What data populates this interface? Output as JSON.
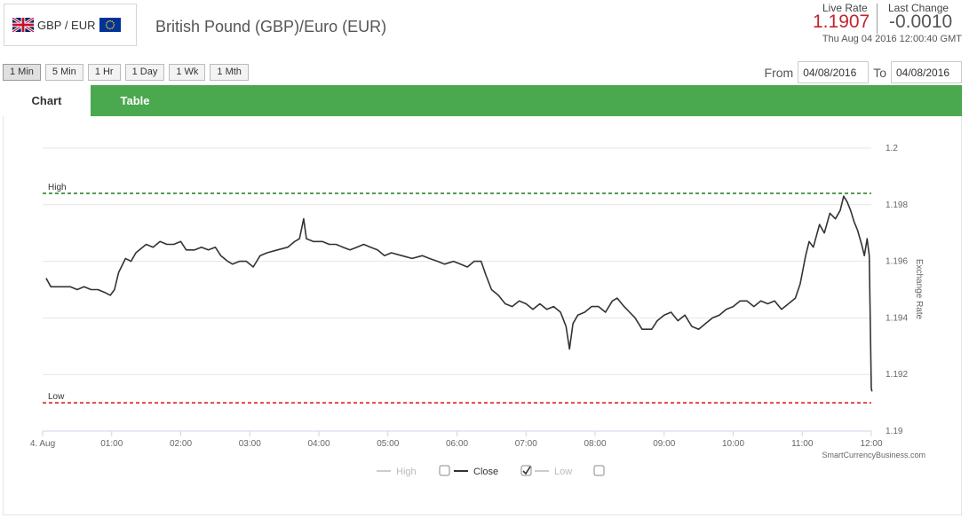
{
  "pair": {
    "label": "GBP / EUR",
    "title": "British Pound (GBP)/Euro (EUR)",
    "base_flag": "uk-flag-icon",
    "quote_flag": "eu-flag-icon"
  },
  "rate": {
    "live_label": "Live Rate",
    "live_value": "1.1907",
    "change_label": "Last Change",
    "change_value": "-0.0010",
    "timestamp": "Thu Aug 04 2016 12:00:40 GMT",
    "live_color": "#c0262c"
  },
  "periods": [
    {
      "label": "1 Min",
      "active": true
    },
    {
      "label": "5 Min",
      "active": false
    },
    {
      "label": "1 Hr",
      "active": false
    },
    {
      "label": "1 Day",
      "active": false
    },
    {
      "label": "1 Wk",
      "active": false
    },
    {
      "label": "1 Mth",
      "active": false
    }
  ],
  "date_range": {
    "from_label": "From",
    "from_value": "04/08/2016",
    "to_label": "To",
    "to_value": "04/08/2016"
  },
  "tabs": {
    "chart": "Chart",
    "table": "Table",
    "accent": "#4aa84f"
  },
  "chart_data": {
    "type": "line",
    "title": "",
    "xlabel": "",
    "ylabel": "Exchange Rate",
    "ylim": [
      1.19,
      1.2
    ],
    "xlim": [
      0,
      12
    ],
    "x_tick_labels": [
      "4. Aug",
      "01:00",
      "02:00",
      "03:00",
      "04:00",
      "05:00",
      "06:00",
      "07:00",
      "08:00",
      "09:00",
      "10:00",
      "11:00",
      "12:00"
    ],
    "y_ticks": [
      1.19,
      1.192,
      1.194,
      1.196,
      1.198,
      1.2
    ],
    "grid": true,
    "legend_position": "bottom",
    "credit": "SmartCurrencyBusiness.com",
    "high": {
      "label": "High",
      "value": 1.1984,
      "color": "#1a7a1a"
    },
    "low": {
      "label": "Low",
      "value": 1.191,
      "color": "#dd1111"
    },
    "series": [
      {
        "name": "Close",
        "color": "#333333",
        "points": [
          [
            0.05,
            1.1954
          ],
          [
            0.12,
            1.1951
          ],
          [
            0.25,
            1.1951
          ],
          [
            0.4,
            1.1951
          ],
          [
            0.5,
            1.195
          ],
          [
            0.6,
            1.1951
          ],
          [
            0.7,
            1.195
          ],
          [
            0.8,
            1.195
          ],
          [
            0.9,
            1.1949
          ],
          [
            0.98,
            1.1948
          ],
          [
            1.04,
            1.195
          ],
          [
            1.1,
            1.1956
          ],
          [
            1.2,
            1.1961
          ],
          [
            1.28,
            1.196
          ],
          [
            1.35,
            1.1963
          ],
          [
            1.5,
            1.1966
          ],
          [
            1.6,
            1.1965
          ],
          [
            1.7,
            1.1967
          ],
          [
            1.8,
            1.1966
          ],
          [
            1.9,
            1.1966
          ],
          [
            2.0,
            1.1967
          ],
          [
            2.08,
            1.1964
          ],
          [
            2.2,
            1.1964
          ],
          [
            2.3,
            1.1965
          ],
          [
            2.4,
            1.1964
          ],
          [
            2.5,
            1.1965
          ],
          [
            2.58,
            1.1962
          ],
          [
            2.68,
            1.196
          ],
          [
            2.75,
            1.1959
          ],
          [
            2.85,
            1.196
          ],
          [
            2.95,
            1.196
          ],
          [
            3.05,
            1.1958
          ],
          [
            3.15,
            1.1962
          ],
          [
            3.25,
            1.1963
          ],
          [
            3.4,
            1.1964
          ],
          [
            3.55,
            1.1965
          ],
          [
            3.65,
            1.1967
          ],
          [
            3.72,
            1.1968
          ],
          [
            3.78,
            1.1975
          ],
          [
            3.82,
            1.1968
          ],
          [
            3.92,
            1.1967
          ],
          [
            4.05,
            1.1967
          ],
          [
            4.15,
            1.1966
          ],
          [
            4.25,
            1.1966
          ],
          [
            4.35,
            1.1965
          ],
          [
            4.45,
            1.1964
          ],
          [
            4.55,
            1.1965
          ],
          [
            4.65,
            1.1966
          ],
          [
            4.75,
            1.1965
          ],
          [
            4.85,
            1.1964
          ],
          [
            4.95,
            1.1962
          ],
          [
            5.05,
            1.1963
          ],
          [
            5.2,
            1.1962
          ],
          [
            5.35,
            1.1961
          ],
          [
            5.5,
            1.1962
          ],
          [
            5.6,
            1.1961
          ],
          [
            5.72,
            1.196
          ],
          [
            5.82,
            1.1959
          ],
          [
            5.95,
            1.196
          ],
          [
            6.05,
            1.1959
          ],
          [
            6.15,
            1.1958
          ],
          [
            6.25,
            1.196
          ],
          [
            6.35,
            1.196
          ],
          [
            6.42,
            1.1955
          ],
          [
            6.5,
            1.195
          ],
          [
            6.6,
            1.1948
          ],
          [
            6.7,
            1.1945
          ],
          [
            6.8,
            1.1944
          ],
          [
            6.9,
            1.1946
          ],
          [
            7.0,
            1.1945
          ],
          [
            7.1,
            1.1943
          ],
          [
            7.2,
            1.1945
          ],
          [
            7.3,
            1.1943
          ],
          [
            7.4,
            1.1944
          ],
          [
            7.5,
            1.1942
          ],
          [
            7.58,
            1.1937
          ],
          [
            7.63,
            1.1929
          ],
          [
            7.68,
            1.1938
          ],
          [
            7.75,
            1.1941
          ],
          [
            7.85,
            1.1942
          ],
          [
            7.95,
            1.1944
          ],
          [
            8.05,
            1.1944
          ],
          [
            8.15,
            1.1942
          ],
          [
            8.25,
            1.1946
          ],
          [
            8.32,
            1.1947
          ],
          [
            8.42,
            1.1944
          ],
          [
            8.5,
            1.1942
          ],
          [
            8.58,
            1.194
          ],
          [
            8.68,
            1.1936
          ],
          [
            8.75,
            1.1936
          ],
          [
            8.82,
            1.1936
          ],
          [
            8.9,
            1.1939
          ],
          [
            9.0,
            1.1941
          ],
          [
            9.1,
            1.1942
          ],
          [
            9.2,
            1.1939
          ],
          [
            9.3,
            1.1941
          ],
          [
            9.4,
            1.1937
          ],
          [
            9.5,
            1.1936
          ],
          [
            9.6,
            1.1938
          ],
          [
            9.7,
            1.194
          ],
          [
            9.8,
            1.1941
          ],
          [
            9.9,
            1.1943
          ],
          [
            10.0,
            1.1944
          ],
          [
            10.1,
            1.1946
          ],
          [
            10.2,
            1.1946
          ],
          [
            10.3,
            1.1944
          ],
          [
            10.4,
            1.1946
          ],
          [
            10.5,
            1.1945
          ],
          [
            10.6,
            1.1946
          ],
          [
            10.7,
            1.1943
          ],
          [
            10.8,
            1.1945
          ],
          [
            10.9,
            1.1947
          ],
          [
            10.97,
            1.1952
          ],
          [
            11.05,
            1.1962
          ],
          [
            11.1,
            1.1967
          ],
          [
            11.16,
            1.1965
          ],
          [
            11.25,
            1.1973
          ],
          [
            11.32,
            1.197
          ],
          [
            11.4,
            1.1977
          ],
          [
            11.48,
            1.1975
          ],
          [
            11.55,
            1.1978
          ],
          [
            11.6,
            1.1983
          ],
          [
            11.65,
            1.1981
          ],
          [
            11.7,
            1.1978
          ],
          [
            11.75,
            1.1974
          ],
          [
            11.8,
            1.1971
          ],
          [
            11.86,
            1.1966
          ],
          [
            11.9,
            1.1962
          ],
          [
            11.94,
            1.1968
          ],
          [
            11.97,
            1.1962
          ],
          [
            12.0,
            1.1915
          ],
          [
            12.01,
            1.1914
          ]
        ]
      }
    ],
    "legend": [
      {
        "name": "High",
        "visible": false,
        "color": "#cccccc"
      },
      {
        "name": "Close",
        "visible": true,
        "color": "#333333"
      },
      {
        "name": "Low",
        "visible": false,
        "color": "#cccccc"
      }
    ]
  }
}
